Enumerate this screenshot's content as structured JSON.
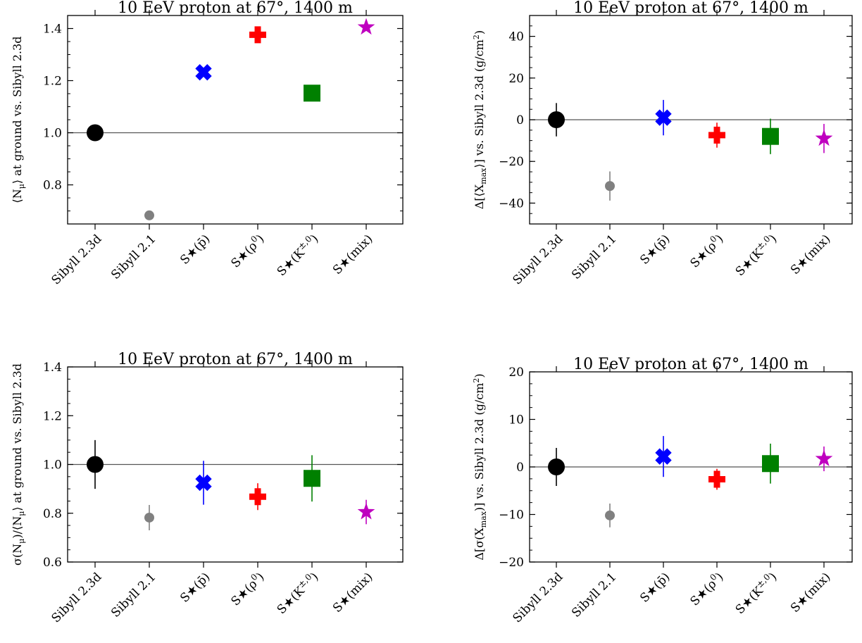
{
  "chart_data": [
    {
      "type": "scatter",
      "title": "10 EeV proton at 67°, 1400 m",
      "ylabel": "⟨N_μ⟩ at ground vs. Sibyll 2.3d",
      "categories": [
        "Sibyll 2.3d",
        "Sibyll 2.1",
        "S★(p̄)",
        "S★(ρ⁰)",
        "S★(K^±,0)",
        "S★(mix)"
      ],
      "values": [
        1.0,
        0.683,
        1.232,
        1.376,
        1.152,
        1.405
      ],
      "errors": [
        0,
        0,
        0,
        0,
        0,
        0
      ],
      "ylim": [
        0.65,
        1.45
      ],
      "yticks": [
        "0.8",
        "1.0",
        "1.2",
        "1.4"
      ],
      "reference_line": 1.0
    },
    {
      "type": "scatter",
      "title": "10 EeV proton at 67°, 1400 m",
      "ylabel": "Δ[⟨X_max⟩] vs. Sibyll 2.3d (g/cm²)",
      "categories": [
        "Sibyll 2.3d",
        "Sibyll 2.1",
        "S★(p̄)",
        "S★(ρ⁰)",
        "S★(K^±,0)",
        "S★(mix)"
      ],
      "values": [
        0.0,
        -31.8,
        1.0,
        -7.4,
        -8.0,
        -9.0
      ],
      "errors": [
        8.0,
        7.0,
        8.5,
        6.0,
        8.5,
        7.0
      ],
      "ylim": [
        -50,
        50
      ],
      "yticks": [
        "−40",
        "−20",
        "0",
        "20",
        "40"
      ],
      "reference_line": 0
    },
    {
      "type": "scatter",
      "title": "10 EeV proton at 67°, 1400 m",
      "ylabel": "σ(N_μ)/⟨N_μ⟩ at ground vs. Sibyll 2.3d",
      "categories": [
        "Sibyll 2.3d",
        "Sibyll 2.1",
        "S★(p̄)",
        "S★(ρ⁰)",
        "S★(K^±,0)",
        "S★(mix)"
      ],
      "values": [
        1.0,
        0.782,
        0.925,
        0.868,
        0.943,
        0.805
      ],
      "errors": [
        0.1,
        0.052,
        0.09,
        0.055,
        0.095,
        0.05
      ],
      "ylim": [
        0.6,
        1.4
      ],
      "yticks": [
        "0.6",
        "0.8",
        "1.0",
        "1.2",
        "1.4"
      ],
      "reference_line": 1.0
    },
    {
      "type": "scatter",
      "title": "10 EeV proton at 67°, 1400 m",
      "ylabel": "Δ[σ(X_max)] vs. Sibyll 2.3d (g/cm²)",
      "categories": [
        "Sibyll 2.3d",
        "Sibyll 2.1",
        "S★(p̄)",
        "S★(ρ⁰)",
        "S★(K^±,0)",
        "S★(mix)"
      ],
      "values": [
        0.0,
        -10.2,
        2.2,
        -2.6,
        0.7,
        1.7
      ],
      "errors": [
        4.0,
        2.5,
        4.3,
        2.2,
        4.2,
        2.6
      ],
      "ylim": [
        -20,
        20
      ],
      "yticks": [
        "−20",
        "−10",
        "0",
        "10",
        "20"
      ],
      "reference_line": 0
    }
  ],
  "markers": [
    {
      "shape": "circle",
      "color": "#000000"
    },
    {
      "shape": "small-circle",
      "color": "#808080"
    },
    {
      "shape": "x-cross",
      "color": "#0000ff"
    },
    {
      "shape": "plus",
      "color": "#ff0000"
    },
    {
      "shape": "square",
      "color": "#008000"
    },
    {
      "shape": "star",
      "color": "#bf00bf"
    }
  ]
}
